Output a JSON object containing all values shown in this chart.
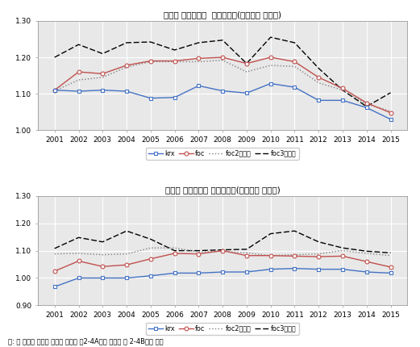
{
  "years": [
    2001,
    2002,
    2003,
    2004,
    2005,
    2006,
    2007,
    2008,
    2009,
    2010,
    2011,
    2012,
    2013,
    2014,
    2015
  ],
  "chart1_title": "고성장 선장횟수별  매옵성장률(기업군별 중간치)",
  "chart1_krx": [
    1.11,
    1.107,
    1.11,
    1.107,
    1.088,
    1.09,
    1.122,
    1.108,
    1.102,
    1.128,
    1.118,
    1.082,
    1.082,
    1.062,
    1.03
  ],
  "chart1_foc": [
    1.11,
    1.16,
    1.155,
    1.178,
    1.19,
    1.19,
    1.197,
    1.2,
    1.183,
    1.2,
    1.188,
    1.145,
    1.115,
    1.075,
    1.048
  ],
  "chart1_foc2": [
    1.108,
    1.138,
    1.145,
    1.173,
    1.188,
    1.188,
    1.188,
    1.192,
    1.16,
    1.178,
    1.175,
    1.13,
    1.11,
    1.072,
    1.052
  ],
  "chart1_foc3": [
    1.2,
    1.235,
    1.21,
    1.24,
    1.242,
    1.22,
    1.24,
    1.247,
    1.183,
    1.255,
    1.24,
    1.17,
    1.11,
    1.065,
    1.103
  ],
  "chart2_title": "고성장 선장횟수별 고용성장률(기업군별 중간치)",
  "chart2_krx": [
    0.968,
    1.0,
    1.0,
    1.0,
    1.008,
    1.018,
    1.018,
    1.022,
    1.022,
    1.032,
    1.035,
    1.032,
    1.032,
    1.022,
    1.018
  ],
  "chart2_foc": [
    1.025,
    1.062,
    1.042,
    1.048,
    1.07,
    1.09,
    1.088,
    1.1,
    1.082,
    1.082,
    1.08,
    1.078,
    1.08,
    1.06,
    1.04
  ],
  "chart2_foc2": [
    1.088,
    1.09,
    1.085,
    1.088,
    1.11,
    1.11,
    1.095,
    1.098,
    1.092,
    1.082,
    1.085,
    1.088,
    1.1,
    1.09,
    1.082
  ],
  "chart2_foc3": [
    1.108,
    1.148,
    1.132,
    1.172,
    1.142,
    1.1,
    1.1,
    1.103,
    1.105,
    1.162,
    1.172,
    1.132,
    1.11,
    1.098,
    1.092
  ],
  "ylim1": [
    1.0,
    1.3
  ],
  "ylim2": [
    0.9,
    1.3
  ],
  "yticks1": [
    1.0,
    1.1,
    1.2,
    1.3
  ],
  "yticks2": [
    0.9,
    1.0,
    1.1,
    1.2,
    1.3
  ],
  "color_krx": "#4472C4",
  "color_foc": "#C0504D",
  "color_foc2": "#7f7f7f",
  "color_foc3": "#000000",
  "legend_krx": "krx",
  "legend_foc": "foc",
  "legend_foc2": "foc2회미만",
  "legend_foc3": "foc3회이상",
  "footnote": "주: 위 그림과 관련된 통계는 〈부록 퍂2-4A〉와 〈부록 표 2-4B〉를 참조"
}
